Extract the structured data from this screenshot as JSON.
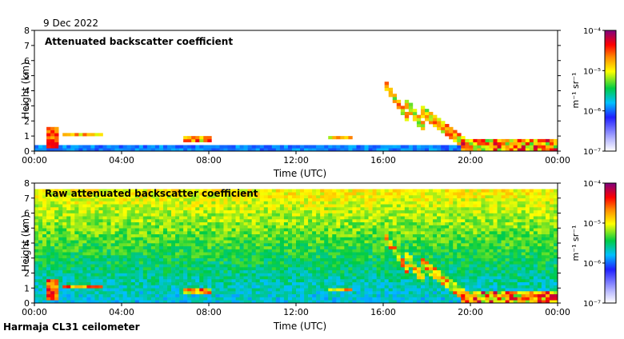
{
  "date": "9 Dec 2022",
  "instrument": "Harmaja CL31 ceilometer",
  "chart_data": [
    {
      "type": "heatmap",
      "title": "Attenuated backscatter coefficient",
      "xlabel": "Time (UTC)",
      "ylabel": "Height (km)",
      "xticks": [
        "00:00",
        "04:00",
        "08:00",
        "12:00",
        "16:00",
        "20:00",
        "00:00"
      ],
      "yticks": [
        "0",
        "1",
        "2",
        "3",
        "4",
        "5",
        "6",
        "7",
        "8"
      ],
      "xlim_hours": [
        0,
        24
      ],
      "ylim_km": [
        0,
        8
      ],
      "scale": "log",
      "colorbar": {
        "label": "m⁻¹ sr⁻¹",
        "ticks": [
          "10⁻⁷",
          "10⁻⁶",
          "10⁻⁵",
          "10⁻⁴"
        ],
        "range": [
          1e-07,
          0.0001
        ]
      }
    },
    {
      "type": "heatmap",
      "title": "Raw attenuated backscatter coefficient",
      "xlabel": "Time (UTC)",
      "ylabel": "Height (km)",
      "xticks": [
        "00:00",
        "04:00",
        "08:00",
        "12:00",
        "16:00",
        "20:00",
        "00:00"
      ],
      "yticks": [
        "0",
        "1",
        "2",
        "3",
        "4",
        "5",
        "6",
        "7",
        "8"
      ],
      "xlim_hours": [
        0,
        24
      ],
      "ylim_km": [
        0,
        8
      ],
      "scale": "log",
      "colorbar": {
        "label": "m⁻¹ sr⁻¹",
        "ticks": [
          "10⁻⁷",
          "10⁻⁶",
          "10⁻⁵",
          "10⁻⁴"
        ],
        "range": [
          1e-07,
          0.0001
        ]
      }
    }
  ]
}
